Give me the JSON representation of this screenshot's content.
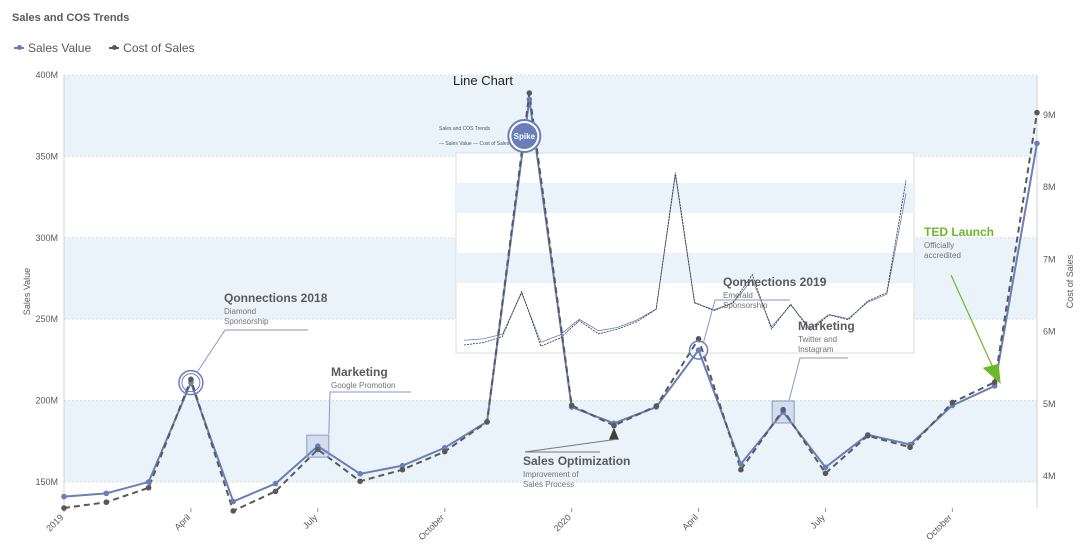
{
  "chart_data": {
    "type": "line",
    "title": "Sales and COS Trends",
    "overlay_label": "Line Chart",
    "legend": [
      {
        "name": "Sales Value",
        "color": "#6a7fba"
      },
      {
        "name": "Cost of Sales",
        "color": "#595959"
      }
    ],
    "x": [
      "2019-01",
      "2019-02",
      "2019-03",
      "2019-04",
      "2019-05",
      "2019-06",
      "2019-07",
      "2019-08",
      "2019-09",
      "2019-10",
      "2019-11",
      "2019-12",
      "2020-01",
      "2020-02",
      "2020-03",
      "2020-04",
      "2020-05",
      "2020-06",
      "2020-07",
      "2020-08",
      "2020-09",
      "2020-10",
      "2020-11",
      "2020-12"
    ],
    "x_tick_labels": [
      {
        "index": 0,
        "label": "2019"
      },
      {
        "index": 3,
        "label": "April"
      },
      {
        "index": 6,
        "label": "July"
      },
      {
        "index": 9,
        "label": "October"
      },
      {
        "index": 12,
        "label": "2020"
      },
      {
        "index": 15,
        "label": "April"
      },
      {
        "index": 18,
        "label": "July"
      },
      {
        "index": 21,
        "label": "October"
      }
    ],
    "y_left": {
      "label": "Sales Value",
      "range": [
        134,
        400
      ],
      "ticks": [
        "150M",
        "200M",
        "250M",
        "300M",
        "350M",
        "400M"
      ],
      "tick_values": [
        150,
        200,
        250,
        300,
        350,
        400
      ]
    },
    "y_right": {
      "label": "Cost of Sales",
      "range": [
        3.56,
        9.55
      ],
      "ticks": [
        "4M",
        "5M",
        "6M",
        "7M",
        "8M",
        "9M"
      ],
      "tick_values": [
        4,
        5,
        6,
        7,
        8,
        9
      ]
    },
    "series": [
      {
        "name": "Sales Value",
        "axis": "left",
        "values": [
          141,
          143,
          150,
          211,
          138,
          149,
          172,
          155,
          160,
          171,
          187,
          385,
          196,
          186,
          196,
          231,
          161,
          193,
          159,
          179,
          173,
          197,
          209,
          358
        ]
      },
      {
        "name": "Cost of Sales",
        "axis": "right",
        "values": [
          3.56,
          3.64,
          3.84,
          5.34,
          3.52,
          3.79,
          4.37,
          3.93,
          4.09,
          4.34,
          4.75,
          9.3,
          4.98,
          4.7,
          4.97,
          5.9,
          4.09,
          4.92,
          4.04,
          4.56,
          4.4,
          5.02,
          5.3,
          9.03
        ]
      }
    ],
    "bands": [
      [
        150,
        200
      ],
      [
        250,
        300
      ],
      [
        350,
        400
      ]
    ],
    "annotations": [
      {
        "id": "qonnections-2018",
        "title": "Qonnections 2018",
        "lines": [
          "Diamond",
          "Sponsorship"
        ],
        "color": "#595959"
      },
      {
        "id": "marketing-1",
        "title": "Marketing",
        "lines": [
          "Google Promotion"
        ],
        "color": "#595959"
      },
      {
        "id": "spike",
        "title": "Spike",
        "lines": [],
        "color": "#6a7fba"
      },
      {
        "id": "sales-optimization",
        "title": "Sales Optimization",
        "lines": [
          "Improvement of",
          "Sales Process"
        ],
        "color": "#595959"
      },
      {
        "id": "qonnections-2019",
        "title": "Qonnections 2019",
        "lines": [
          "Emerald",
          "Sponsorship"
        ],
        "color": "#595959"
      },
      {
        "id": "marketing-2",
        "title": "Marketing",
        "lines": [
          "Twitter and",
          "Instagram"
        ],
        "color": "#595959"
      },
      {
        "id": "ted-launch",
        "title": "TED Launch",
        "lines": [
          "Officially",
          "accredited"
        ],
        "color": "#6cb82c"
      }
    ]
  }
}
